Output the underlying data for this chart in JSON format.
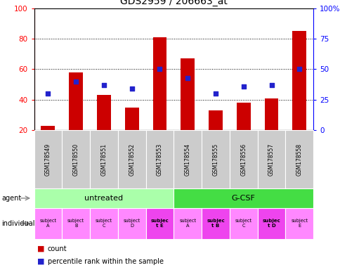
{
  "title": "GDS2959 / 206663_at",
  "samples": [
    "GSM178549",
    "GSM178550",
    "GSM178551",
    "GSM178552",
    "GSM178553",
    "GSM178554",
    "GSM178555",
    "GSM178556",
    "GSM178557",
    "GSM178558"
  ],
  "counts": [
    23,
    58,
    43,
    35,
    81,
    67,
    33,
    38,
    41,
    85
  ],
  "percentile_ranks": [
    30,
    40,
    37,
    34,
    50,
    43,
    30,
    36,
    37,
    50
  ],
  "ylim_left": [
    20,
    100
  ],
  "ylim_right": [
    0,
    100
  ],
  "yticks_left": [
    20,
    40,
    60,
    80,
    100
  ],
  "yticks_right": [
    0,
    25,
    50,
    75,
    100
  ],
  "yticklabels_right": [
    "0",
    "25",
    "50",
    "75",
    "100%"
  ],
  "bar_color": "#cc0000",
  "dot_color": "#2222cc",
  "agent_groups": [
    {
      "label": "untreated",
      "start": 0,
      "end": 5,
      "color": "#aaffaa"
    },
    {
      "label": "G-CSF",
      "start": 5,
      "end": 10,
      "color": "#44dd44"
    }
  ],
  "individual_labels": [
    "subject\nA",
    "subject\nB",
    "subject\nC",
    "subject\nD",
    "subjec\nt E",
    "subject\nA",
    "subjec\nt B",
    "subject\nC",
    "subjec\nt D",
    "subject\nE"
  ],
  "individual_bold": [
    false,
    false,
    false,
    false,
    true,
    false,
    true,
    false,
    true,
    false
  ],
  "individual_colors": [
    "#ff88ff",
    "#ff88ff",
    "#ff88ff",
    "#ff88ff",
    "#ee44ee",
    "#ff88ff",
    "#ee44ee",
    "#ff88ff",
    "#ee44ee",
    "#ff88ff"
  ],
  "sample_bg": "#cccccc",
  "figsize": [
    4.85,
    3.84
  ],
  "dpi": 100
}
